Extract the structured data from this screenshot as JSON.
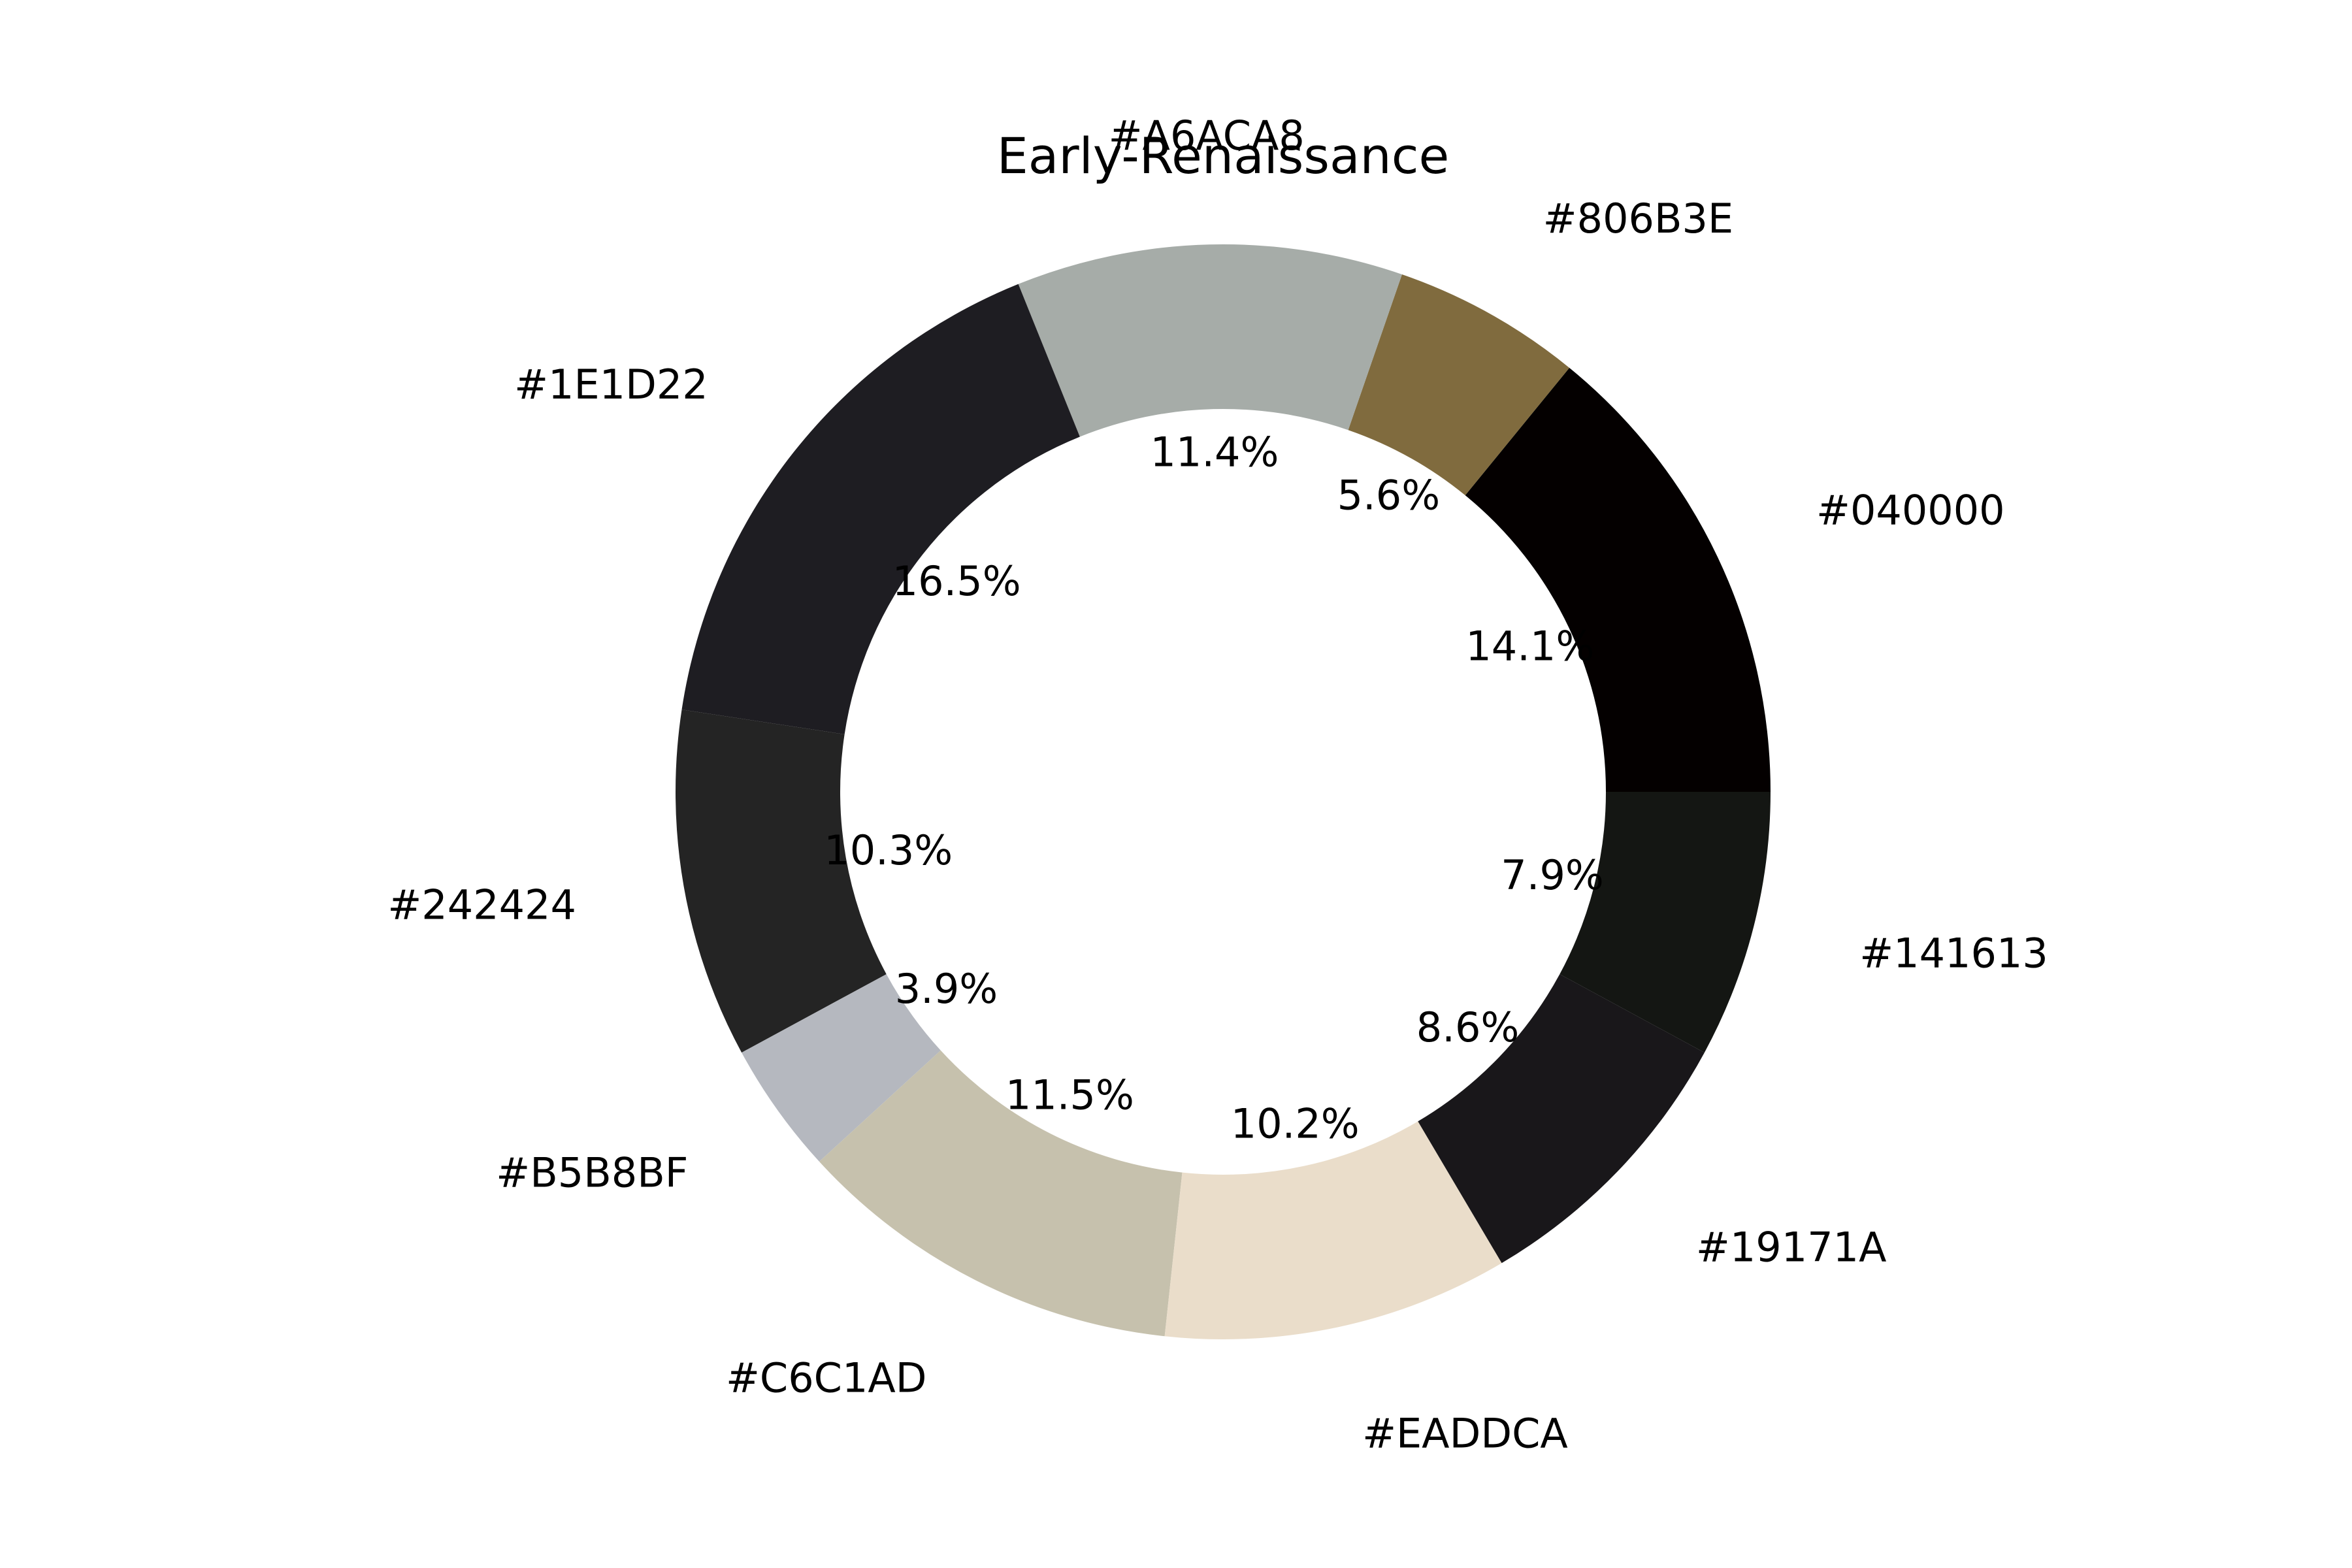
{
  "chart_data": {
    "type": "pie",
    "variant": "donut",
    "title": "Early-Renaissance",
    "start_angle_deg": 0,
    "direction": "counterclockwise",
    "slices": [
      {
        "label": "#040000",
        "value": 14.1,
        "pct_label": "14.1%",
        "color": "#040000"
      },
      {
        "label": "#806B3E",
        "value": 5.6,
        "pct_label": "5.6%",
        "color": "#806B3E"
      },
      {
        "label": "#A6ACA8",
        "value": 11.4,
        "pct_label": "11.4%",
        "color": "#A6ACA8"
      },
      {
        "label": "#1E1D22",
        "value": 16.5,
        "pct_label": "16.5%",
        "color": "#1E1D22"
      },
      {
        "label": "#242424",
        "value": 10.3,
        "pct_label": "10.3%",
        "color": "#242424"
      },
      {
        "label": "#B5B8BF",
        "value": 3.9,
        "pct_label": "3.9%",
        "color": "#B5B8BF"
      },
      {
        "label": "#C6C1AD",
        "value": 11.5,
        "pct_label": "11.5%",
        "color": "#C6C1AD"
      },
      {
        "label": "#EADDCA",
        "value": 10.2,
        "pct_label": "10.2%",
        "color": "#EADDCA"
      },
      {
        "label": "#19171A",
        "value": 8.6,
        "pct_label": "8.6%",
        "color": "#19171A"
      },
      {
        "label": "#141613",
        "value": 7.9,
        "pct_label": "7.9%",
        "color": "#141613"
      }
    ]
  }
}
